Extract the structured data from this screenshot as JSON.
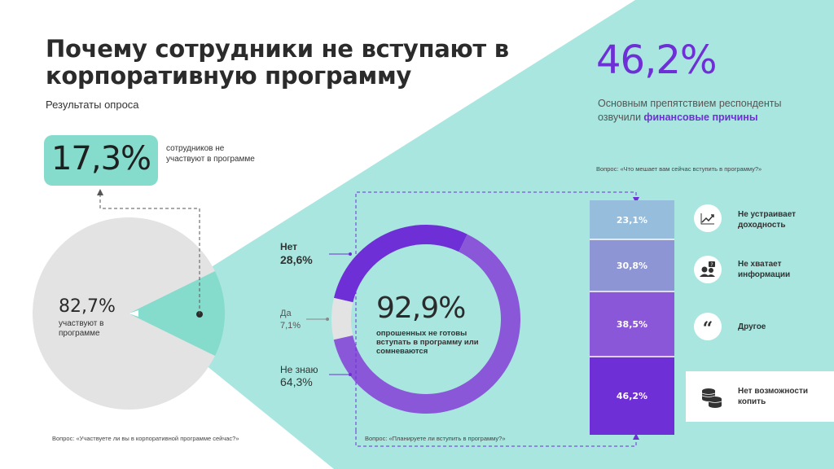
{
  "header": {
    "title": "Почему сотрудники не вступают в корпоративную программу",
    "subtitle": "Результаты опроса"
  },
  "participation": {
    "kpi_value": "17,3%",
    "kpi_desc": "сотрудников не участвуют в программе",
    "pie_value": "82,7%",
    "pie_desc": "участвуют в программе",
    "question": "Вопрос: «Участвуете ли вы в корпоративной программе сейчас?»"
  },
  "readiness": {
    "center_value": "92,9%",
    "center_desc": "опрошенных не готовы вступать в программу или сомневаются",
    "labels": {
      "no": "Нет",
      "no_val": "28,6%",
      "yes": "Да",
      "yes_val": "7,1%",
      "dk": "Не знаю",
      "dk_val": "64,3%"
    },
    "question": "Вопрос: «Планируете ли вступить в программу?»"
  },
  "barriers": {
    "big_value": "46,2%",
    "desc_prefix": "Основным препятствием респонденты озвучили ",
    "desc_highlight": "финансовые причины",
    "question": "Вопрос: «Что мешает вам сейчас вступить в программу?»",
    "reasons": [
      {
        "label": "Не устраивает доходность",
        "icon": "chart-growth-icon"
      },
      {
        "label": "Не хватает информации",
        "icon": "people-question-icon"
      },
      {
        "label": "Другое",
        "icon": "quote-icon"
      },
      {
        "label": "Нет возможности копить",
        "icon": "coins-icon"
      }
    ]
  },
  "colors": {
    "mint": "#a8e6df",
    "mint_dark": "#86dccc",
    "purple": "#6f2fd6",
    "purple_mid": "#8a57d9",
    "lilac": "#8d95d4",
    "sky": "#96bddc",
    "grey": "#e3e3e3"
  },
  "chart_data": [
    {
      "type": "pie",
      "labels": [
        "участвуют в программе",
        "не участвуют в программе"
      ],
      "values": [
        82.7,
        17.3
      ]
    },
    {
      "type": "pie",
      "labels": [
        "Нет",
        "Да",
        "Не знаю"
      ],
      "values": [
        28.6,
        7.1,
        64.3
      ]
    },
    {
      "type": "bar",
      "stacked": true,
      "categories": [
        "Не устраивает доходность",
        "Не хватает информации",
        "Другое",
        "Нет возможности копить"
      ],
      "values": [
        23.1,
        30.8,
        38.5,
        46.2
      ],
      "value_labels": [
        "23,1%",
        "30,8%",
        "38,5%",
        "46,2%"
      ]
    }
  ]
}
